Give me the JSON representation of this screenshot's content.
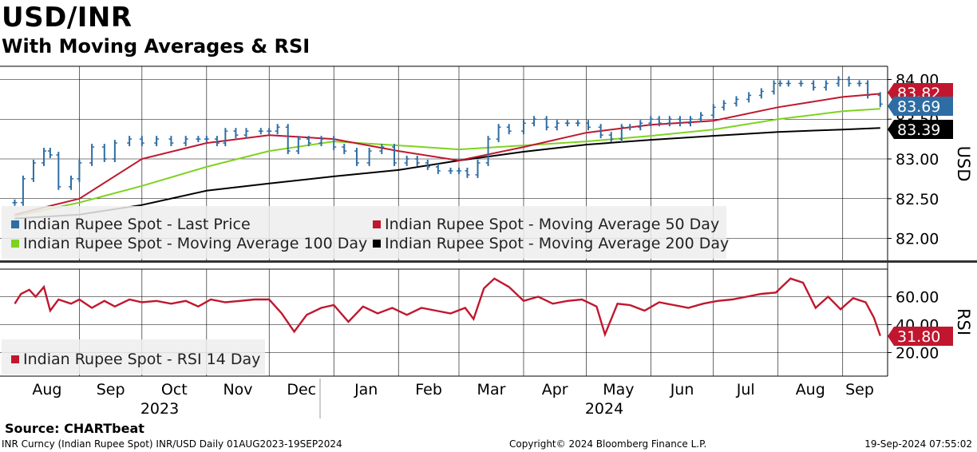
{
  "header": {
    "title": "USD/INR",
    "subtitle": "With Moving Averages & RSI"
  },
  "footer": {
    "source": "Source: CHARTbeat",
    "ticker_info": "INR Curncy (Indian Rupee Spot) INR/USD  Daily 01AUG2023-19SEP2024",
    "copyright": "Copyright© 2024 Bloomberg Finance L.P.",
    "timestamp": "19-Sep-2024 07:55:02"
  },
  "colors": {
    "price": "#2e6da4",
    "ma50": "#c0172e",
    "ma100": "#7ed321",
    "ma200": "#000000",
    "rsi": "#c0172e",
    "grid": "#000000"
  },
  "chart_data": [
    {
      "type": "line",
      "panel": "price",
      "ylabel": "USD",
      "ylim": [
        81.75,
        84.15
      ],
      "yticks": [
        "84.00",
        "83.50",
        "83.00",
        "82.50",
        "82.00"
      ],
      "grid": true,
      "legend_position": "bottom-left",
      "months": [
        "Aug",
        "Sep",
        "Oct",
        "Nov",
        "Dec",
        "Jan",
        "Feb",
        "Mar",
        "Apr",
        "May",
        "Jun",
        "Jul",
        "Aug",
        "Sep"
      ],
      "years": [
        "2023",
        "2024"
      ],
      "series": [
        {
          "name": "Indian Rupee Spot - Last Price",
          "style": "ohlc-bars",
          "last_label": "83.69",
          "x": [
            "2023-08-01",
            "2023-08-05",
            "2023-08-10",
            "2023-08-15",
            "2023-08-18",
            "2023-08-22",
            "2023-08-28",
            "2023-09-01",
            "2023-09-07",
            "2023-09-13",
            "2023-09-18",
            "2023-09-25",
            "2023-10-01",
            "2023-10-08",
            "2023-10-15",
            "2023-10-22",
            "2023-10-28",
            "2023-11-01",
            "2023-11-06",
            "2023-11-10",
            "2023-11-15",
            "2023-11-20",
            "2023-11-27",
            "2023-12-01",
            "2023-12-05",
            "2023-12-10",
            "2023-12-15",
            "2023-12-20",
            "2023-12-26",
            "2024-01-01",
            "2024-01-06",
            "2024-01-12",
            "2024-01-18",
            "2024-01-24",
            "2024-01-30",
            "2024-02-05",
            "2024-02-10",
            "2024-02-15",
            "2024-02-20",
            "2024-02-26",
            "2024-03-01",
            "2024-03-05",
            "2024-03-10",
            "2024-03-15",
            "2024-03-20",
            "2024-03-25",
            "2024-04-01",
            "2024-04-06",
            "2024-04-12",
            "2024-04-17",
            "2024-04-22",
            "2024-04-27",
            "2024-05-02",
            "2024-05-08",
            "2024-05-13",
            "2024-05-18",
            "2024-05-22",
            "2024-05-27",
            "2024-06-01",
            "2024-06-05",
            "2024-06-10",
            "2024-06-15",
            "2024-06-20",
            "2024-06-25",
            "2024-07-01",
            "2024-07-06",
            "2024-07-12",
            "2024-07-18",
            "2024-07-24",
            "2024-07-30",
            "2024-08-02",
            "2024-08-06",
            "2024-08-12",
            "2024-08-18",
            "2024-08-24",
            "2024-08-30",
            "2024-09-04",
            "2024-09-09",
            "2024-09-13",
            "2024-09-19"
          ],
          "values": [
            82.45,
            82.75,
            82.95,
            83.1,
            83.05,
            82.65,
            82.75,
            82.95,
            83.15,
            83.0,
            83.2,
            83.25,
            83.2,
            83.25,
            83.2,
            83.25,
            83.25,
            83.25,
            83.2,
            83.35,
            83.3,
            83.35,
            83.35,
            83.35,
            83.4,
            83.1,
            83.25,
            83.2,
            83.25,
            83.15,
            83.1,
            82.95,
            83.1,
            83.15,
            82.95,
            83.0,
            82.95,
            82.9,
            82.85,
            82.85,
            82.85,
            82.8,
            82.95,
            83.25,
            83.4,
            83.35,
            83.45,
            83.5,
            83.4,
            83.45,
            83.45,
            83.45,
            83.4,
            83.3,
            83.25,
            83.4,
            83.4,
            83.45,
            83.5,
            83.45,
            83.5,
            83.45,
            83.5,
            83.55,
            83.65,
            83.7,
            83.75,
            83.8,
            83.85,
            83.95,
            83.95,
            83.95,
            83.95,
            83.9,
            83.95,
            84.0,
            83.95,
            83.95,
            83.8,
            83.69
          ]
        },
        {
          "name": "Indian Rupee Spot - Moving Average 50 Day",
          "last_label": "83.82",
          "x": [
            "2023-08-01",
            "2023-09-01",
            "2023-10-01",
            "2023-11-01",
            "2023-12-01",
            "2024-01-01",
            "2024-02-01",
            "2024-03-01",
            "2024-04-01",
            "2024-05-01",
            "2024-06-01",
            "2024-07-01",
            "2024-08-01",
            "2024-09-01",
            "2024-09-19"
          ],
          "values": [
            82.3,
            82.5,
            83.0,
            83.2,
            83.3,
            83.25,
            83.1,
            82.98,
            83.15,
            83.33,
            83.43,
            83.48,
            83.65,
            83.78,
            83.82
          ]
        },
        {
          "name": "Indian Rupee Spot - Moving Average 100 Day",
          "last_label": "",
          "x": [
            "2023-08-01",
            "2023-09-01",
            "2023-10-01",
            "2023-11-01",
            "2023-12-01",
            "2024-01-01",
            "2024-02-01",
            "2024-03-01",
            "2024-04-01",
            "2024-05-01",
            "2024-06-01",
            "2024-07-01",
            "2024-08-01",
            "2024-09-01",
            "2024-09-19"
          ],
          "values": [
            82.28,
            82.45,
            82.66,
            82.9,
            83.1,
            83.22,
            83.17,
            83.12,
            83.17,
            83.22,
            83.29,
            83.37,
            83.5,
            83.6,
            83.63
          ]
        },
        {
          "name": "Indian Rupee Spot - Moving Average 200 Day",
          "last_label": "83.39",
          "x": [
            "2023-08-01",
            "2023-09-01",
            "2023-10-01",
            "2023-11-01",
            "2023-12-01",
            "2024-01-01",
            "2024-02-01",
            "2024-03-01",
            "2024-04-01",
            "2024-05-01",
            "2024-06-01",
            "2024-07-01",
            "2024-08-01",
            "2024-09-01",
            "2024-09-19"
          ],
          "values": [
            82.25,
            82.3,
            82.42,
            82.6,
            82.69,
            82.78,
            82.86,
            82.98,
            83.09,
            83.18,
            83.24,
            83.29,
            83.34,
            83.37,
            83.39
          ]
        }
      ]
    },
    {
      "type": "line",
      "panel": "rsi",
      "ylabel": "RSI",
      "ylim": [
        14,
        75
      ],
      "yticks": [
        "60.00",
        "40.00",
        "20.00"
      ],
      "grid": true,
      "legend_position": "bottom-left",
      "series": [
        {
          "name": "Indian Rupee Spot - RSI 14 Day",
          "last_label": "31.80",
          "x": [
            "2023-08-01",
            "2023-08-04",
            "2023-08-08",
            "2023-08-11",
            "2023-08-15",
            "2023-08-18",
            "2023-08-22",
            "2023-08-28",
            "2023-09-01",
            "2023-09-07",
            "2023-09-13",
            "2023-09-18",
            "2023-09-25",
            "2023-10-01",
            "2023-10-08",
            "2023-10-15",
            "2023-10-22",
            "2023-10-28",
            "2023-11-03",
            "2023-11-10",
            "2023-11-17",
            "2023-11-24",
            "2023-12-01",
            "2023-12-07",
            "2023-12-13",
            "2023-12-19",
            "2023-12-26",
            "2024-01-01",
            "2024-01-08",
            "2024-01-15",
            "2024-01-22",
            "2024-01-29",
            "2024-02-05",
            "2024-02-12",
            "2024-02-19",
            "2024-02-26",
            "2024-03-04",
            "2024-03-08",
            "2024-03-13",
            "2024-03-18",
            "2024-03-25",
            "2024-04-01",
            "2024-04-08",
            "2024-04-15",
            "2024-04-22",
            "2024-04-29",
            "2024-05-06",
            "2024-05-10",
            "2024-05-16",
            "2024-05-22",
            "2024-05-29",
            "2024-06-05",
            "2024-06-12",
            "2024-06-19",
            "2024-06-26",
            "2024-07-03",
            "2024-07-10",
            "2024-07-17",
            "2024-07-24",
            "2024-07-31",
            "2024-08-07",
            "2024-08-13",
            "2024-08-19",
            "2024-08-25",
            "2024-08-31",
            "2024-09-06",
            "2024-09-12",
            "2024-09-16",
            "2024-09-19"
          ],
          "values": [
            55,
            62,
            65,
            60,
            67,
            50,
            58,
            55,
            58,
            52,
            57,
            53,
            58,
            56,
            57,
            55,
            57,
            53,
            58,
            56,
            57,
            58,
            58,
            48,
            35,
            47,
            52,
            54,
            42,
            53,
            48,
            52,
            47,
            52,
            50,
            48,
            52,
            44,
            66,
            73,
            67,
            57,
            60,
            55,
            57,
            58,
            53,
            33,
            55,
            54,
            50,
            56,
            54,
            52,
            55,
            57,
            58,
            60,
            62,
            63,
            73,
            70,
            52,
            60,
            51,
            59,
            56,
            45,
            32
          ]
        }
      ]
    }
  ]
}
